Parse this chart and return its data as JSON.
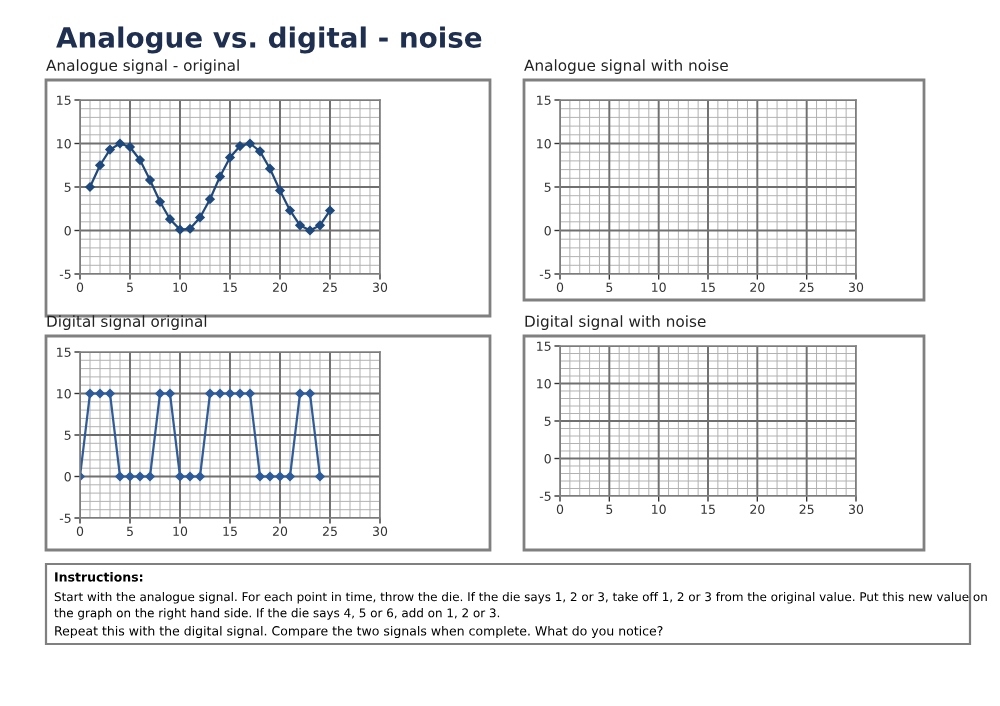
{
  "chart_data": [
    {
      "type": "line",
      "title": "Analogue signal - original",
      "annotations": [
        "Analogue vs. digital - noise"
      ],
      "x": [
        1,
        2,
        3,
        4,
        5,
        6,
        7,
        8,
        9,
        10,
        11,
        12,
        13,
        14,
        15,
        16,
        17,
        18,
        19,
        20,
        21,
        22,
        23,
        24,
        25
      ],
      "series": [
        {
          "color": "#1f497d",
          "values": [
            5,
            7.5,
            9.3,
            10,
            9.6,
            8.1,
            5.8,
            3.3,
            1.3,
            0.1,
            0.2,
            1.5,
            3.6,
            6.2,
            8.4,
            9.7,
            10,
            9.1,
            7.1,
            4.6,
            2.3,
            0.6,
            0,
            0.6,
            2.3
          ]
        }
      ],
      "xlim": [
        0,
        30
      ],
      "xticks": [
        0,
        5,
        10,
        15,
        20,
        25,
        30
      ],
      "ylim": [
        -5,
        15
      ],
      "yticks": [
        -5,
        0,
        5,
        10,
        15
      ],
      "grid": true,
      "marker": "diamond",
      "line_style": "solid"
    },
    {
      "type": "line",
      "title": "Analogue signal with noise",
      "xlim": [
        0,
        30
      ],
      "xticks": [
        0,
        5,
        10,
        15,
        20,
        25,
        30
      ],
      "ylim": [
        -5,
        15
      ],
      "yticks": [
        -5,
        0,
        5,
        10,
        15
      ],
      "grid": true
    },
    {
      "type": "line",
      "title": "Digital signal original",
      "x": [
        0,
        1,
        2,
        3,
        4,
        5,
        6,
        7,
        8,
        9,
        10,
        11,
        12,
        13,
        14,
        15,
        16,
        17,
        18,
        19,
        20,
        21,
        22,
        23,
        24
      ],
      "series": [
        {
          "color": "#2e5c9a",
          "values": [
            0,
            10,
            10,
            10,
            0,
            0,
            0,
            0,
            10,
            10,
            0,
            0,
            0,
            10,
            10,
            10,
            10,
            10,
            0,
            0,
            0,
            0,
            10,
            10,
            0
          ]
        }
      ],
      "xlim": [
        0,
        30
      ],
      "xticks": [
        0,
        5,
        10,
        15,
        20,
        25,
        30
      ],
      "ylim": [
        -5,
        15
      ],
      "yticks": [
        -5,
        0,
        5,
        10,
        15
      ],
      "grid": true,
      "marker": "diamond",
      "line_style": "solid"
    },
    {
      "type": "line",
      "title": "Digital signal with noise",
      "annotations": [
        "Instructions:",
        "Start with the analogue signal. For each point in time, throw the die. If the die says 1, 2 or 3, take off 1, 2 or 3 from the original value. Put this new value on the graph on the right hand side. If the die says 4, 5 or 6, add on 1, 2 or 3.",
        "Repeat this with the digital signal. Compare the two signals when complete. What do you notice?"
      ],
      "xlim": [
        0,
        30
      ],
      "xticks": [
        0,
        5,
        10,
        15,
        20,
        25,
        30
      ],
      "ylim": [
        -5,
        15
      ],
      "yticks": [
        -5,
        0,
        5,
        10,
        15
      ],
      "grid": true
    }
  ]
}
